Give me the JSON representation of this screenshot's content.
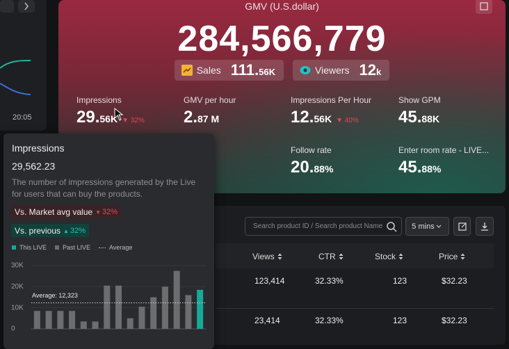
{
  "sidebar": {
    "time_label": "20:05"
  },
  "hero": {
    "title": "GMV (U.S.dollar)",
    "gmv": "284,566,779",
    "pills": [
      {
        "label": "Sales",
        "value": "111.56K"
      },
      {
        "label": "Viewers",
        "value": "12k"
      }
    ],
    "metrics": [
      {
        "label": "Impressions",
        "value": "29.56K",
        "delta": "32%",
        "direction": "down"
      },
      {
        "label": "GMV per hour",
        "value": "2.87 M"
      },
      {
        "label": "Impressions Per Hour",
        "value": "12.56K",
        "delta": "40%",
        "direction": "down"
      },
      {
        "label": "Show GPM",
        "value": "45.88K"
      },
      {
        "label": "nt rate",
        "value": "%"
      },
      {
        "label": "Follow rate",
        "value": "20.88%"
      },
      {
        "label": "Enter room rate - LIVE...",
        "value": "45.88%"
      }
    ]
  },
  "products": {
    "search_placeholder": "Search product ID / Search product Name",
    "interval": "5 mins",
    "columns": [
      "Views",
      "CTR",
      "Stock",
      "Price"
    ],
    "rows": [
      [
        "123,414",
        "32.33%",
        "123",
        "$32.23"
      ],
      [
        "23,414",
        "32.33%",
        "123",
        "$32.23"
      ]
    ]
  },
  "tooltip": {
    "title": "Impressions",
    "value": "29,562.23",
    "description": "The number of impressions generated by the Live for users that can buy the products.",
    "badges": [
      {
        "label": "Vs. Market avg value",
        "delta": "32%",
        "direction": "down"
      },
      {
        "label": "Vs. previous",
        "delta": "32%",
        "direction": "up"
      }
    ]
  },
  "chart_data": {
    "type": "bar",
    "series": [
      {
        "name": "This LIVE",
        "color": "#17a99a",
        "values": [
          null,
          null,
          null,
          null,
          null,
          null,
          null,
          null,
          null,
          null,
          null,
          null,
          null,
          null,
          18500
        ]
      },
      {
        "name": "Past LIVE",
        "color": "#6d6d70",
        "values": [
          8500,
          8500,
          8500,
          8500,
          3500,
          3500,
          20500,
          20500,
          5000,
          10500,
          15000,
          20000,
          27500,
          16000,
          null
        ]
      }
    ],
    "average": {
      "name": "Average",
      "value": 12323,
      "value_label": "Average: 12,323"
    },
    "ylim": [
      0,
      30000
    ],
    "yticks": [
      0,
      {
        "value": 10000,
        "label": "10K"
      },
      {
        "value": 20000,
        "label": "20K"
      },
      {
        "value": 30000,
        "label": "30K"
      }
    ]
  }
}
